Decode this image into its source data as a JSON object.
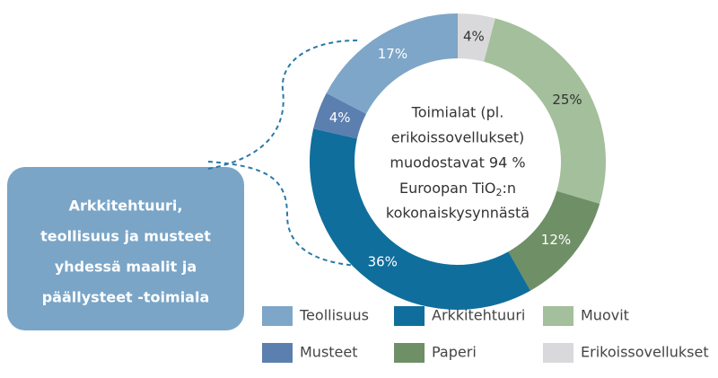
{
  "chart_data": {
    "type": "donut",
    "categories": [
      "Erikoissovellukset",
      "Muovit",
      "Paperi",
      "Arkkitehtuuri",
      "Musteet",
      "Teollisuus"
    ],
    "values": [
      4,
      25,
      12,
      36,
      4,
      17
    ],
    "value_labels": [
      "4%",
      "25%",
      "12%",
      "36%",
      "4%",
      "17%"
    ],
    "colors": [
      "#d9d9db",
      "#a3bf9b",
      "#6f8f66",
      "#0f6e9c",
      "#5b7faf",
      "#7ea6c8"
    ],
    "legend_order": [
      5,
      3,
      1,
      4,
      2,
      0
    ],
    "center_text": [
      "Toimialat (pl.",
      "erikoissovellukset)",
      "muodostavat 94 %",
      {
        "before": "Euroopan TiO",
        "sub": "2",
        "after": ":n"
      },
      "kokonaiskysynnästä"
    ],
    "callout": [
      "Arkkitehtuuri,",
      "teollisuus ja musteet",
      "yhdessä maalit ja",
      "päällysteet  -toimiala"
    ]
  }
}
